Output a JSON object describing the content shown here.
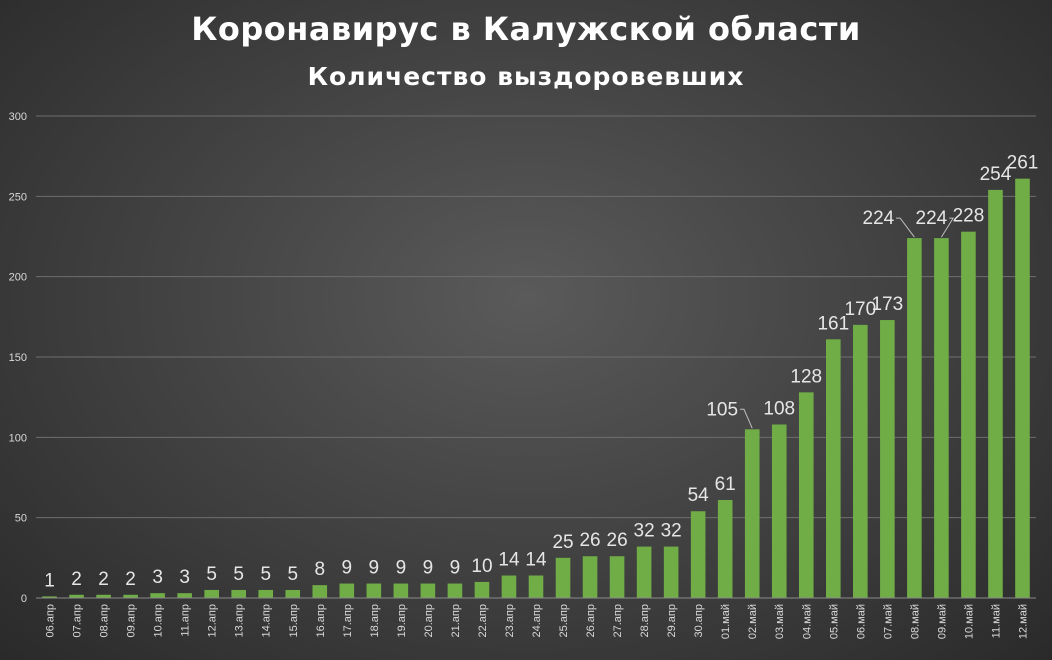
{
  "chart_data": {
    "type": "bar",
    "title": "Коронавирус в Калужской области",
    "subtitle": "Количество выздоровевших",
    "xlabel": "",
    "ylabel": "",
    "ylim": [
      0,
      300
    ],
    "yticks": [
      0,
      50,
      100,
      150,
      200,
      250,
      300
    ],
    "grid": true,
    "legend": "none",
    "bar_color": "#70ad47",
    "categories": [
      "06.апр",
      "07.апр",
      "08.апр",
      "09.апр",
      "10.апр",
      "11.апр",
      "12.апр",
      "13.апр",
      "14.апр",
      "15.апр",
      "16.апр",
      "17.апр",
      "18.апр",
      "19.апр",
      "20.апр",
      "21.апр",
      "22.апр",
      "23.апр",
      "24.апр",
      "25.апр",
      "26.апр",
      "27.апр",
      "28.апр",
      "29.апр",
      "30.апр",
      "01.май",
      "02.май",
      "03.май",
      "04.май",
      "05.май",
      "06.май",
      "07.май",
      "08.май",
      "09.май",
      "10.май",
      "11.май",
      "12.май"
    ],
    "values": [
      1,
      2,
      2,
      2,
      3,
      3,
      5,
      5,
      5,
      5,
      8,
      9,
      9,
      9,
      9,
      9,
      10,
      14,
      14,
      25,
      26,
      26,
      32,
      32,
      54,
      61,
      105,
      108,
      128,
      161,
      170,
      173,
      224,
      224,
      228,
      254,
      261
    ]
  }
}
